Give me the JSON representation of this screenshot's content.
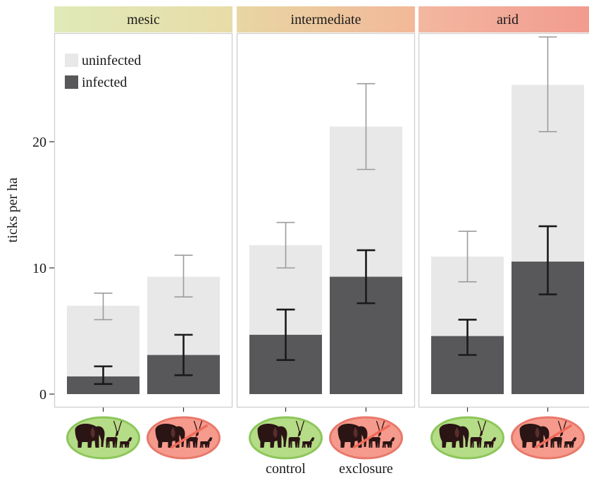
{
  "chart_data": {
    "type": "bar",
    "ylabel": "ticks per ha",
    "ylim": [
      0,
      28.5
    ],
    "yticks": [
      0,
      10,
      20
    ],
    "grid": false,
    "legend": {
      "placement": "top-left",
      "entries": [
        {
          "label": "uninfected",
          "color": "#e8e8e8"
        },
        {
          "label": "infected",
          "color": "#58585a"
        }
      ]
    },
    "categories": [
      "control",
      "exclosure"
    ],
    "x_captions": [
      "control",
      "exclosure"
    ],
    "panels": [
      {
        "label": "mesic",
        "strip_colors": [
          "#dfeab8",
          "#e8dca8"
        ],
        "bars": [
          {
            "category": "control",
            "total": 7.0,
            "total_err": [
              5.9,
              8.0
            ],
            "infected": 1.4,
            "infected_err": [
              0.8,
              2.2
            ]
          },
          {
            "category": "exclosure",
            "total": 9.3,
            "total_err": [
              7.7,
              11.0
            ],
            "infected": 3.1,
            "infected_err": [
              1.5,
              4.7
            ]
          }
        ]
      },
      {
        "label": "intermediate",
        "strip_colors": [
          "#e8d6a4",
          "#f2b898"
        ],
        "bars": [
          {
            "category": "control",
            "total": 11.8,
            "total_err": [
              10.0,
              13.6
            ],
            "infected": 4.7,
            "infected_err": [
              2.7,
              6.7
            ]
          },
          {
            "category": "exclosure",
            "total": 21.2,
            "total_err": [
              17.8,
              24.6
            ],
            "infected": 9.3,
            "infected_err": [
              7.2,
              11.4
            ]
          }
        ]
      },
      {
        "label": "arid",
        "strip_colors": [
          "#f3b7a0",
          "#f29a8e"
        ],
        "bars": [
          {
            "category": "control",
            "total": 10.9,
            "total_err": [
              8.9,
              12.9
            ],
            "infected": 4.6,
            "infected_err": [
              3.1,
              5.9
            ]
          },
          {
            "category": "exclosure",
            "total": 24.5,
            "total_err": [
              20.8,
              28.3
            ],
            "infected": 10.5,
            "infected_err": [
              7.9,
              13.3
            ]
          }
        ]
      }
    ],
    "colors": {
      "uninfected": "#e8e8e8",
      "infected": "#58585a",
      "err_total": "#9b9b9b",
      "err_infected": "#1a1a1a",
      "panel_border": "#cfcfcf",
      "control_badge_fill": "#b5dc86",
      "control_badge_stroke": "#8cc65a",
      "exclosure_badge_fill": "#f59a8c",
      "exclosure_badge_stroke": "#e8786a",
      "animal": "#2a1414"
    },
    "icons": {
      "control": "elephant-impala-dikdik-icon",
      "exclosure": "crossed-elephant-impala-dikdik-icon"
    }
  }
}
